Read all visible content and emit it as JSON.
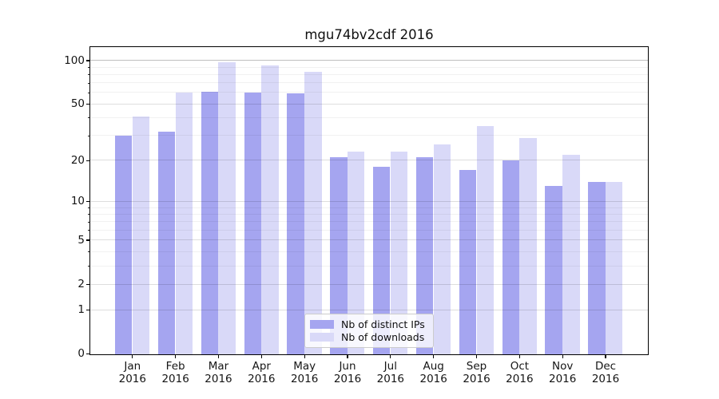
{
  "chart_data": {
    "type": "bar",
    "title": "mgu74bv2cdf 2016",
    "categories": [
      "Jan 2016",
      "Feb 2016",
      "Mar 2016",
      "Apr 2016",
      "May 2016",
      "Jun 2016",
      "Jul 2016",
      "Aug 2016",
      "Sep 2016",
      "Oct 2016",
      "Nov 2016",
      "Dec 2016"
    ],
    "months": [
      "Jan",
      "Feb",
      "Mar",
      "Apr",
      "May",
      "Jun",
      "Jul",
      "Aug",
      "Sep",
      "Oct",
      "Nov",
      "Dec"
    ],
    "year": "2016",
    "series": [
      {
        "name": "Nb of distinct IPs",
        "color": "#a5a5f0",
        "values": [
          30,
          32,
          61,
          60,
          59,
          21,
          18,
          21,
          17,
          20,
          13,
          14
        ]
      },
      {
        "name": "Nb of downloads",
        "color": "#d9d9f8",
        "values": [
          41,
          60,
          97,
          92,
          84,
          23,
          23,
          26,
          35,
          29,
          22,
          14
        ]
      }
    ],
    "yscale": "log(1+y)",
    "yticks": [
      0,
      1,
      2,
      5,
      10,
      20,
      50,
      100
    ],
    "yticks_minor": [
      3,
      4,
      6,
      7,
      8,
      9,
      30,
      40,
      60,
      70,
      80,
      90
    ],
    "ylim": [
      0,
      123
    ],
    "xlabel": "",
    "ylabel": "",
    "grid": true,
    "legend_position": "lower center"
  },
  "colors": {
    "grid_major": "rgba(0,0,0,0.13)",
    "grid_strong": "rgba(0,0,0,0.25)",
    "grid_minor": "rgba(0,0,0,0.055)",
    "spine": "#000000",
    "text": "#151515"
  }
}
